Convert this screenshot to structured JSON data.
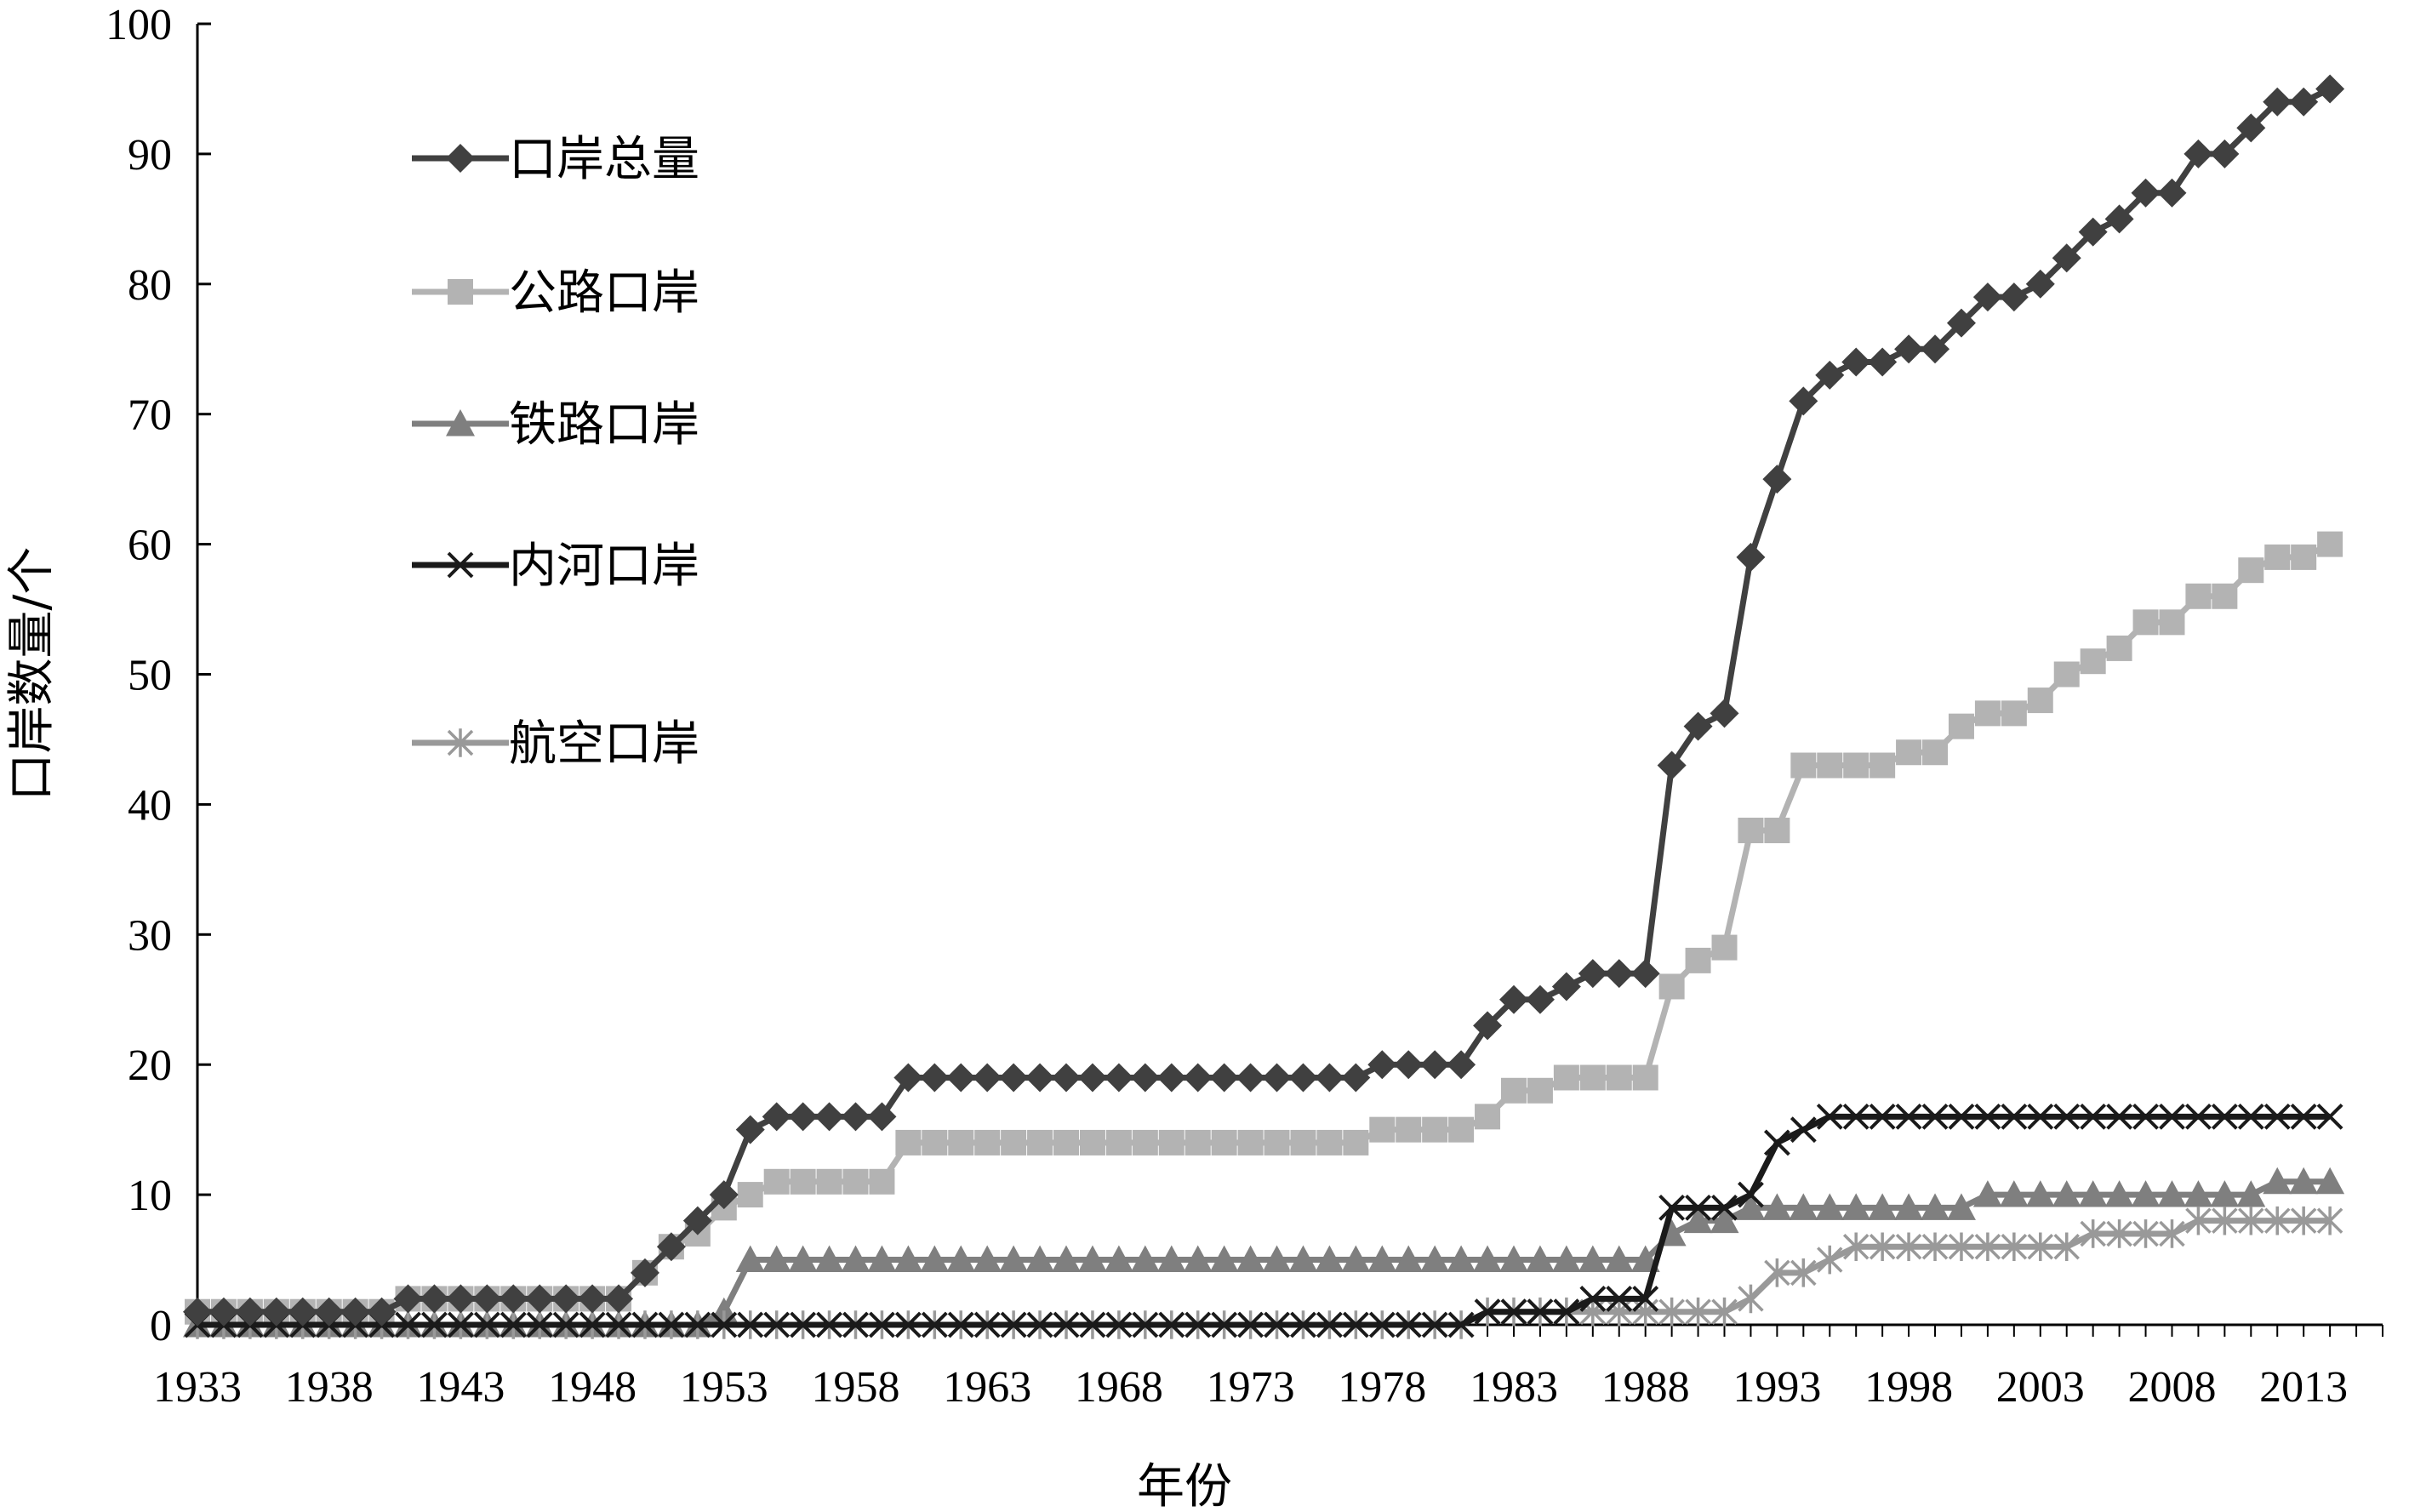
{
  "chart_data": {
    "type": "line",
    "title": "",
    "xlabel": "年份",
    "ylabel": "口岸数量/个",
    "xlim": [
      1933,
      2016
    ],
    "ylim": [
      0,
      100
    ],
    "y_ticks": [
      0,
      10,
      20,
      30,
      40,
      50,
      60,
      70,
      80,
      90,
      100
    ],
    "x_ticks": [
      1933,
      1938,
      1943,
      1948,
      1953,
      1958,
      1963,
      1968,
      1973,
      1978,
      1983,
      1988,
      1993,
      1998,
      2003,
      2008,
      2013
    ],
    "grid": false,
    "legend_position": "top-left",
    "x": [
      1933,
      1934,
      1935,
      1936,
      1937,
      1938,
      1939,
      1940,
      1941,
      1942,
      1943,
      1944,
      1945,
      1946,
      1947,
      1948,
      1949,
      1950,
      1951,
      1952,
      1953,
      1954,
      1955,
      1956,
      1957,
      1958,
      1959,
      1960,
      1961,
      1962,
      1963,
      1964,
      1965,
      1966,
      1967,
      1968,
      1969,
      1970,
      1971,
      1972,
      1973,
      1974,
      1975,
      1976,
      1977,
      1978,
      1979,
      1980,
      1981,
      1982,
      1983,
      1984,
      1985,
      1986,
      1987,
      1988,
      1989,
      1990,
      1991,
      1992,
      1993,
      1994,
      1995,
      1996,
      1997,
      1998,
      1999,
      2000,
      2001,
      2002,
      2003,
      2004,
      2005,
      2006,
      2007,
      2008,
      2009,
      2010,
      2011,
      2012,
      2013,
      2014
    ],
    "series": [
      {
        "name": "口岸总量",
        "color": "#404040",
        "marker": "diamond",
        "values": [
          1,
          1,
          1,
          1,
          1,
          1,
          1,
          1,
          2,
          2,
          2,
          2,
          2,
          2,
          2,
          2,
          2,
          4,
          6,
          8,
          10,
          15,
          16,
          16,
          16,
          16,
          16,
          19,
          19,
          19,
          19,
          19,
          19,
          19,
          19,
          19,
          19,
          19,
          19,
          19,
          19,
          19,
          19,
          19,
          19,
          20,
          20,
          20,
          20,
          23,
          25,
          25,
          26,
          27,
          27,
          27,
          43,
          46,
          47,
          59,
          65,
          71,
          73,
          74,
          74,
          75,
          75,
          77,
          79,
          79,
          80,
          82,
          84,
          85,
          87,
          87,
          90,
          90,
          92,
          94,
          94,
          95
        ]
      },
      {
        "name": "公路口岸",
        "color": "#b3b3b3",
        "marker": "square",
        "values": [
          1,
          1,
          1,
          1,
          1,
          1,
          1,
          1,
          2,
          2,
          2,
          2,
          2,
          2,
          2,
          2,
          2,
          4,
          6,
          7,
          9,
          10,
          11,
          11,
          11,
          11,
          11,
          14,
          14,
          14,
          14,
          14,
          14,
          14,
          14,
          14,
          14,
          14,
          14,
          14,
          14,
          14,
          14,
          14,
          14,
          15,
          15,
          15,
          15,
          16,
          18,
          18,
          19,
          19,
          19,
          19,
          26,
          28,
          29,
          38,
          38,
          43,
          43,
          43,
          43,
          44,
          44,
          46,
          47,
          47,
          48,
          50,
          51,
          52,
          54,
          54,
          56,
          56,
          58,
          59,
          59,
          60
        ]
      },
      {
        "name": "铁路口岸",
        "color": "#7f7f7f",
        "marker": "triangle",
        "values": [
          0,
          0,
          0,
          0,
          0,
          0,
          0,
          0,
          0,
          0,
          0,
          0,
          0,
          0,
          0,
          0,
          0,
          0,
          0,
          0,
          1,
          5,
          5,
          5,
          5,
          5,
          5,
          5,
          5,
          5,
          5,
          5,
          5,
          5,
          5,
          5,
          5,
          5,
          5,
          5,
          5,
          5,
          5,
          5,
          5,
          5,
          5,
          5,
          5,
          5,
          5,
          5,
          5,
          5,
          5,
          5,
          7,
          8,
          8,
          9,
          9,
          9,
          9,
          9,
          9,
          9,
          9,
          9,
          10,
          10,
          10,
          10,
          10,
          10,
          10,
          10,
          10,
          10,
          10,
          11,
          11,
          11
        ]
      },
      {
        "name": "内河口岸",
        "color": "#1a1a1a",
        "marker": "x",
        "values": [
          0,
          0,
          0,
          0,
          0,
          0,
          0,
          0,
          0,
          0,
          0,
          0,
          0,
          0,
          0,
          0,
          0,
          0,
          0,
          0,
          0,
          0,
          0,
          0,
          0,
          0,
          0,
          0,
          0,
          0,
          0,
          0,
          0,
          0,
          0,
          0,
          0,
          0,
          0,
          0,
          0,
          0,
          0,
          0,
          0,
          0,
          0,
          0,
          0,
          1,
          1,
          1,
          1,
          2,
          2,
          2,
          9,
          9,
          9,
          10,
          14,
          15,
          16,
          16,
          16,
          16,
          16,
          16,
          16,
          16,
          16,
          16,
          16,
          16,
          16,
          16,
          16,
          16,
          16,
          16,
          16,
          16
        ]
      },
      {
        "name": "航空口岸",
        "color": "#999999",
        "marker": "asterisk",
        "values": [
          0,
          0,
          0,
          0,
          0,
          0,
          0,
          0,
          0,
          0,
          0,
          0,
          0,
          0,
          0,
          0,
          0,
          0,
          0,
          0,
          0,
          0,
          0,
          0,
          0,
          0,
          0,
          0,
          0,
          0,
          0,
          0,
          0,
          0,
          0,
          0,
          0,
          0,
          0,
          0,
          0,
          0,
          0,
          0,
          0,
          0,
          0,
          0,
          0,
          1,
          1,
          1,
          1,
          1,
          1,
          1,
          1,
          1,
          1,
          2,
          4,
          4,
          5,
          6,
          6,
          6,
          6,
          6,
          6,
          6,
          6,
          6,
          7,
          7,
          7,
          7,
          8,
          8,
          8,
          8,
          8,
          8
        ]
      }
    ]
  }
}
